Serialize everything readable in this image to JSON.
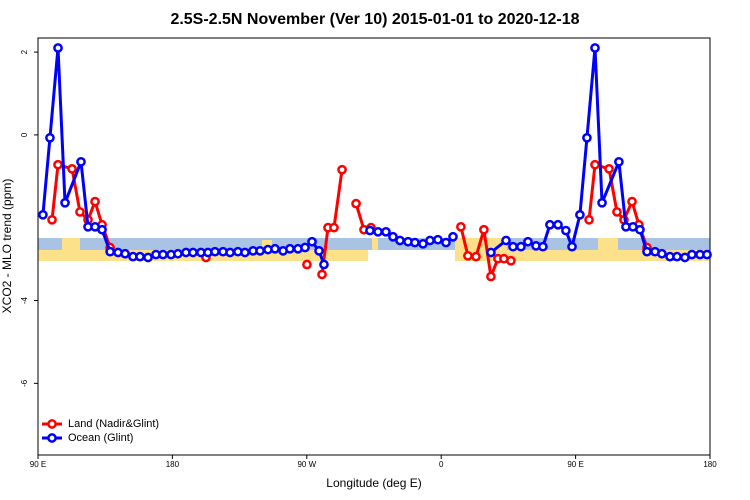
{
  "chart_data": {
    "type": "line",
    "title": "2.5S-2.5N November (Ver 10)   2015-01-01 to 2020-12-18",
    "x_label": "Longitude (deg E)",
    "y_label": "XCO2 - MLO trend (ppm)",
    "xlim": [
      90,
      540
    ],
    "xticks": [
      {
        "value": 90,
        "label": "90 E"
      },
      {
        "value": 180,
        "label": "180"
      },
      {
        "value": 270,
        "label": "90 W"
      },
      {
        "value": 360,
        "label": "0"
      },
      {
        "value": 450,
        "label": "90 E"
      },
      {
        "value": 540,
        "label": "180"
      }
    ],
    "ylim": [
      -7.73,
      2.34
    ],
    "yticks": [
      -6,
      -4,
      0,
      2
    ],
    "legend": "bottomleft",
    "series": [
      {
        "name": "Land (Nadir&Glint)",
        "color": "#ff0000",
        "x": [
          99.4,
          103.4,
          112.8,
          118.1,
          123.5,
          128.2,
          132.9,
          138.3,
          null,
          202.5,
          null,
          270.1,
          null,
          280.2,
          284.2,
          288.2,
          293.6,
          null,
          303.0,
          308.3,
          313.0,
          null,
          373.2,
          377.9,
          383.3,
          388.6,
          393.3,
          398.0,
          402.0,
          406.7,
          null,
          459.0,
          463.0,
          472.4,
          477.7,
          482.4,
          487.8,
          492.4,
          497.8
        ],
        "values": [
          -2.05,
          -0.72,
          -0.82,
          -1.86,
          -2.05,
          -1.61,
          -2.17,
          -2.72,
          null,
          -2.96,
          null,
          -3.13,
          null,
          -3.37,
          -2.24,
          -2.24,
          -0.84,
          null,
          -1.66,
          -2.29,
          -2.24,
          null,
          -2.22,
          -2.92,
          -2.94,
          -2.29,
          -3.42,
          -2.99,
          -2.99,
          -3.04,
          null,
          -2.05,
          -0.72,
          -0.82,
          -1.86,
          -2.05,
          -1.61,
          -2.17,
          -2.72
        ]
      },
      {
        "name": "Ocean (Glint)",
        "color": "#0000ff",
        "x": [
          93.3,
          98.0,
          103.4,
          108.1,
          118.8,
          123.5,
          128.2,
          132.9,
          138.3,
          143.6,
          148.3,
          153.6,
          158.3,
          163.7,
          169.0,
          173.7,
          179.1,
          183.7,
          189.1,
          193.8,
          199.1,
          203.8,
          208.5,
          213.9,
          218.6,
          223.9,
          228.6,
          234.0,
          238.7,
          244.0,
          248.7,
          254.1,
          258.7,
          264.1,
          268.8,
          273.5,
          278.2,
          281.5,
          null,
          312.3,
          317.7,
          323.0,
          327.7,
          332.4,
          337.8,
          342.4,
          347.8,
          352.5,
          357.8,
          363.2,
          367.9,
          null,
          393.3,
          403.4,
          408.1,
          413.4,
          418.1,
          423.5,
          428.1,
          432.8,
          438.2,
          443.5,
          447.6,
          452.9,
          457.6,
          463.0,
          467.7,
          479.0,
          483.7,
          488.4,
          493.1,
          497.8,
          503.2,
          507.8,
          513.2,
          517.9,
          523.2,
          527.9,
          533.3,
          538.0
        ],
        "values": [
          -1.93,
          -0.07,
          2.1,
          -1.64,
          -0.65,
          -2.22,
          -2.22,
          -2.29,
          -2.82,
          -2.84,
          -2.87,
          -2.94,
          -2.94,
          -2.96,
          -2.89,
          -2.89,
          -2.89,
          -2.87,
          -2.84,
          -2.84,
          -2.84,
          -2.84,
          -2.82,
          -2.82,
          -2.84,
          -2.82,
          -2.84,
          -2.8,
          -2.8,
          -2.77,
          -2.75,
          -2.8,
          -2.75,
          -2.75,
          -2.72,
          -2.58,
          -2.8,
          -3.13,
          null,
          -2.31,
          -2.34,
          -2.34,
          -2.46,
          -2.55,
          -2.58,
          -2.6,
          -2.63,
          -2.55,
          -2.53,
          -2.6,
          -2.46,
          null,
          -2.84,
          -2.55,
          -2.7,
          -2.7,
          -2.58,
          -2.68,
          -2.7,
          -2.17,
          -2.17,
          -2.31,
          -2.7,
          -1.93,
          -0.07,
          2.1,
          -1.64,
          -0.65,
          -2.22,
          -2.22,
          -2.29,
          -2.82,
          -2.82,
          -2.87,
          -2.94,
          -2.94,
          -2.96,
          -2.89,
          -2.89,
          -2.89
        ]
      }
    ]
  }
}
